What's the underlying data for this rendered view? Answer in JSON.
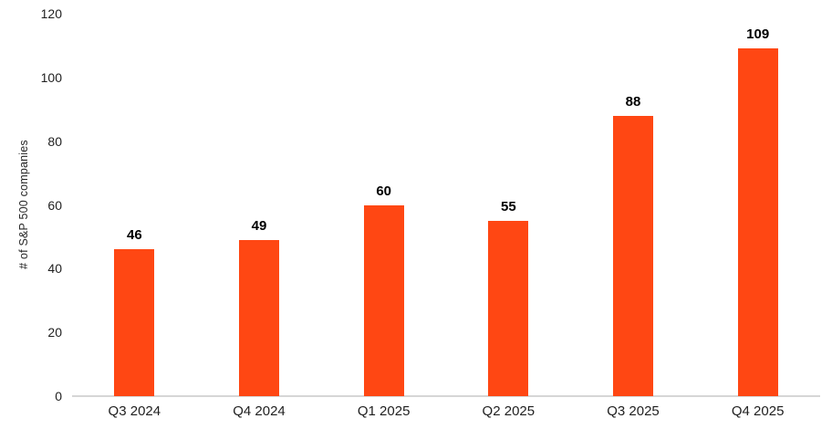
{
  "chart_data": {
    "type": "bar",
    "categories": [
      "Q3 2024",
      "Q4 2024",
      "Q1 2025",
      "Q2 2025",
      "Q3 2025",
      "Q4 2025"
    ],
    "values": [
      46,
      49,
      60,
      55,
      88,
      109
    ],
    "data_labels": [
      "46",
      "49",
      "60",
      "55",
      "88",
      "109"
    ],
    "title": "",
    "xlabel": "",
    "ylabel": "# of S&P 500 companies",
    "ylim": [
      0,
      120
    ],
    "yticks": [
      0,
      20,
      40,
      60,
      80,
      100,
      120
    ],
    "grid": false,
    "legend_position": "none",
    "bar_color": "#FF4713",
    "axis_line_color": "#D6D6D6",
    "tick_label_color": "#1F1F1F",
    "data_label_color": "#000000"
  }
}
